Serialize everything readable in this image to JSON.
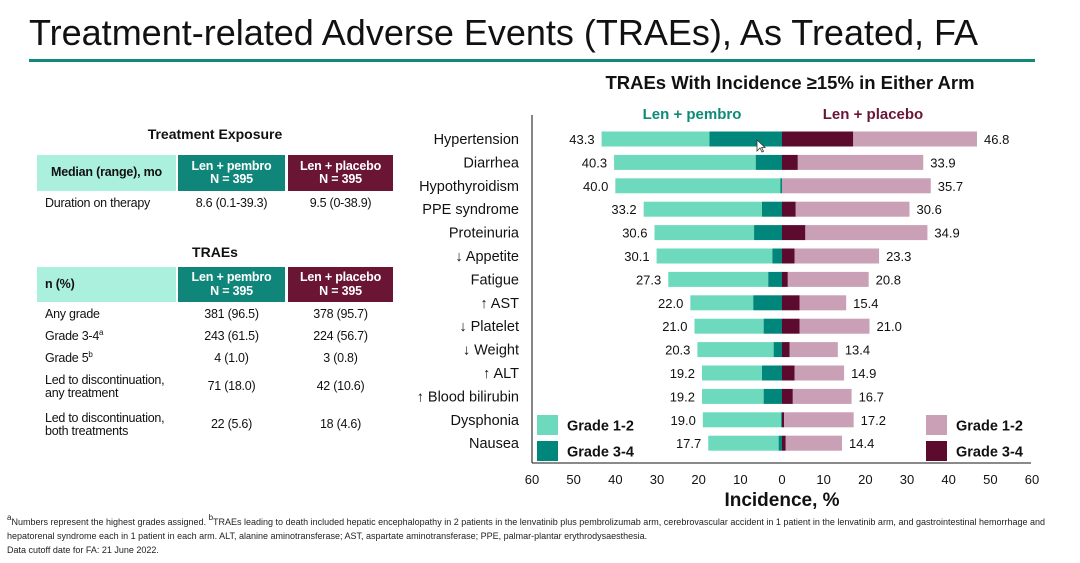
{
  "title": "Treatment-related Adverse Events (TRAEs), As Treated, FA",
  "colors": {
    "accent": "#0f8a7a",
    "header_mint": "#aaf0dd",
    "header_pembro": "#0f8679",
    "header_placebo": "#6a1533",
    "pembro_grade_1_2": "#6edabd",
    "pembro_grade_3_4": "#00867a",
    "placebo_grade_1_2": "#c9a0b5",
    "placebo_grade_3_4": "#5c0a2e",
    "pembro_text": "#0e8a78",
    "placebo_text": "#6b1536"
  },
  "exposure": {
    "heading": "Treatment Exposure",
    "header": {
      "label": "Median (range), mo",
      "arm1_line1": "Len + pembro",
      "arm1_line2": "N = 395",
      "arm2_line1": "Len + placebo",
      "arm2_line2": "N = 395"
    },
    "rows": [
      {
        "label": "Duration on therapy",
        "arm1": "8.6 (0.1-39.3)",
        "arm2": "9.5 (0-38.9)"
      }
    ]
  },
  "traes": {
    "heading": "TRAEs",
    "header": {
      "label": "n (%)",
      "arm1_line1": "Len + pembro",
      "arm1_line2": "N = 395",
      "arm2_line1": "Len + placebo",
      "arm2_line2": "N = 395"
    },
    "rows": [
      {
        "label": "Any grade",
        "arm1": "381 (96.5)",
        "arm2": "378 (95.7)"
      },
      {
        "label": "Grade 3-4",
        "sup": "a",
        "arm1": "243 (61.5)",
        "arm2": "224 (56.7)"
      },
      {
        "label": "Grade 5",
        "sup": "b",
        "arm1": "4 (1.0)",
        "arm2": "3 (0.8)"
      },
      {
        "label": "Led to discontinuation,",
        "label2": "any treatment",
        "arm1": "71 (18.0)",
        "arm2": "42 (10.6)"
      },
      {
        "label": "Led to discontinuation,",
        "label2": "both treatments",
        "arm1": "22 (5.6)",
        "arm2": "18 (4.6)"
      }
    ]
  },
  "chart_data": {
    "type": "bar",
    "orientation": "horizontal-diverging-stacked",
    "title": "TRAEs With Incidence ≥15% in Either Arm",
    "xlabel": "Incidence, %",
    "ylabel": "",
    "xlim": [
      -60,
      60
    ],
    "grid": false,
    "xtick_values": [
      -60,
      -50,
      -40,
      -30,
      -20,
      -10,
      0,
      10,
      20,
      30,
      40,
      50,
      60
    ],
    "xtick_labels": [
      "60",
      "50",
      "40",
      "30",
      "20",
      "10",
      "0",
      "10",
      "20",
      "30",
      "40",
      "50",
      "60"
    ],
    "categories": [
      "Hypertension",
      "Diarrhea",
      "Hypothyroidism",
      "PPE syndrome",
      "Proteinuria",
      "↓ Appetite",
      "Fatigue",
      "↑ AST",
      "↓ Platelet",
      "↓ Weight",
      "↑ ALT",
      "↑ Blood bilirubin",
      "Dysphonia",
      "Nausea"
    ],
    "series": [
      {
        "name": "Len + pembro",
        "side": "left",
        "total_any_grade": [
          43.3,
          40.3,
          40.0,
          33.2,
          30.6,
          30.1,
          27.3,
          22.0,
          21.0,
          20.3,
          19.2,
          19.2,
          19.0,
          17.7
        ],
        "grade_3_4": [
          17.4,
          6.3,
          0.4,
          4.8,
          6.7,
          2.3,
          3.3,
          6.9,
          4.4,
          2.0,
          4.8,
          4.4,
          0.2,
          0.8
        ]
      },
      {
        "name": "Len + placebo",
        "side": "right",
        "total_any_grade": [
          46.8,
          33.9,
          35.7,
          30.6,
          34.9,
          23.3,
          20.8,
          15.4,
          21.0,
          13.4,
          14.9,
          16.7,
          17.2,
          14.4
        ],
        "grade_3_4": [
          17.1,
          3.8,
          0.0,
          3.3,
          5.6,
          3.0,
          1.4,
          4.2,
          4.2,
          1.8,
          3.0,
          2.6,
          0.5,
          0.9
        ]
      }
    ],
    "legend": [
      {
        "series": "Len + pembro",
        "placement": "bottom-left",
        "items": [
          {
            "label": "Grade 1-2",
            "color": "#6edabd"
          },
          {
            "label": "Grade 3-4",
            "color": "#00867a"
          }
        ]
      },
      {
        "series": "Len + placebo",
        "placement": "bottom-right",
        "items": [
          {
            "label": "Grade 1-2",
            "color": "#c9a0b5"
          },
          {
            "label": "Grade 3-4",
            "color": "#5c0a2e"
          }
        ]
      }
    ]
  },
  "footnotes": {
    "line1_sup_a": "a",
    "line1_a": "Numbers represent the highest grades assigned. ",
    "line1_sup_b": "b",
    "line1_b": "TRAEs leading to death included hepatic encephalopathy in 2 patients in the lenvatinib plus pembrolizumab arm, cerebrovascular accident in 1 patient in the lenvatinib arm, and gastrointestinal hemorrhage and",
    "line2": "hepatorenal syndrome each in 1 patient in each arm. ALT, alanine aminotransferase; AST, aspartate aminotransferase; PPE, palmar-plantar erythrodysaesthesia.",
    "line3": "Data cutoff date for FA: 21 June 2022."
  }
}
